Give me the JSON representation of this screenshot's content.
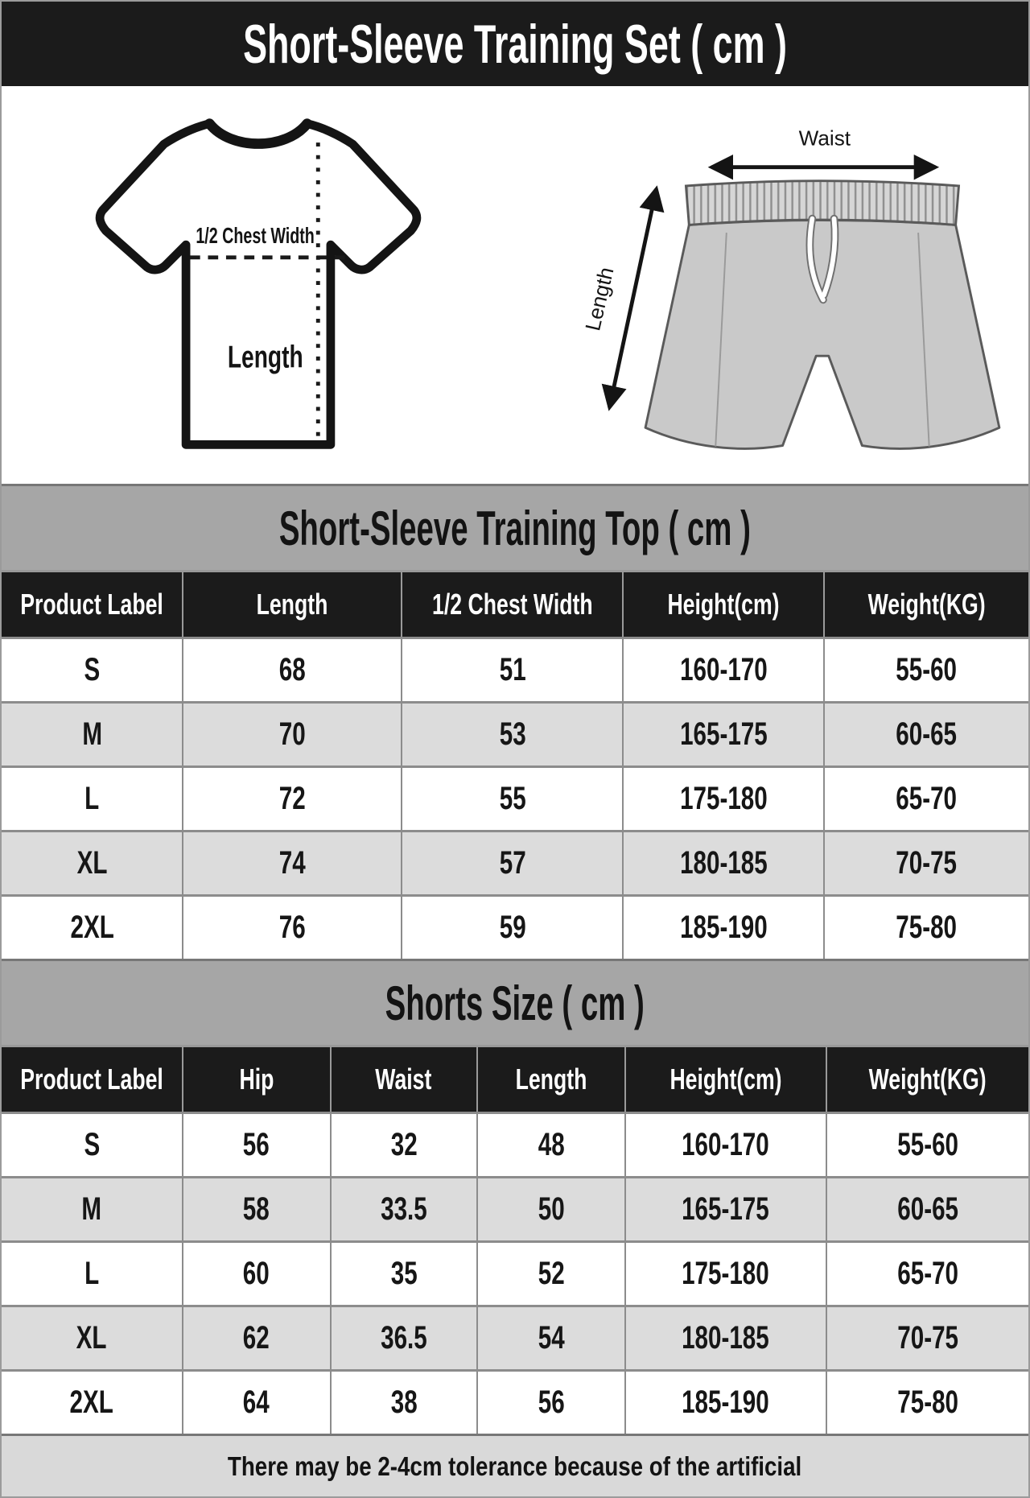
{
  "page": {
    "title": "Short-Sleeve Training Set ( cm )",
    "footer_note": "There may be 2-4cm tolerance because of the artificial"
  },
  "diagrams": {
    "tshirt": {
      "half_chest_label": "1/2 Chest Width",
      "length_label": "Length"
    },
    "shorts": {
      "waist_label": "Waist",
      "length_label": "Length"
    }
  },
  "top_table": {
    "title": "Short-Sleeve Training Top ( cm )",
    "columns": [
      "Product Label",
      "Length",
      "1/2 Chest Width",
      "Height(cm)",
      "Weight(KG)"
    ],
    "rows": [
      [
        "S",
        "68",
        "51",
        "160-170",
        "55-60"
      ],
      [
        "M",
        "70",
        "53",
        "165-175",
        "60-65"
      ],
      [
        "L",
        "72",
        "55",
        "175-180",
        "65-70"
      ],
      [
        "XL",
        "74",
        "57",
        "180-185",
        "70-75"
      ],
      [
        "2XL",
        "76",
        "59",
        "185-190",
        "75-80"
      ]
    ]
  },
  "shorts_table": {
    "title": "Shorts Size ( cm )",
    "columns": [
      "Product Label",
      "Hip",
      "Waist",
      "Length",
      "Height(cm)",
      "Weight(KG)"
    ],
    "rows": [
      [
        "S",
        "56",
        "32",
        "48",
        "160-170",
        "55-60"
      ],
      [
        "M",
        "58",
        "33.5",
        "50",
        "165-175",
        "60-65"
      ],
      [
        "L",
        "60",
        "35",
        "52",
        "175-180",
        "65-70"
      ],
      [
        "XL",
        "62",
        "36.5",
        "54",
        "180-185",
        "70-75"
      ],
      [
        "2XL",
        "64",
        "38",
        "56",
        "185-190",
        "75-80"
      ]
    ]
  },
  "colors": {
    "banner_bg": "#1b1b1b",
    "banner_text": "#ffffff",
    "section_banner_bg": "#a6a6a6",
    "header_row_bg": "#1c1c1c",
    "header_row_text": "#ffffff",
    "row_alt_bg": "#dcdcdc",
    "row_bg": "#ffffff",
    "grid_border": "#8c8c8c",
    "footer_bg": "#d9d9d9",
    "shorts_fill": "#c9c9c9"
  }
}
